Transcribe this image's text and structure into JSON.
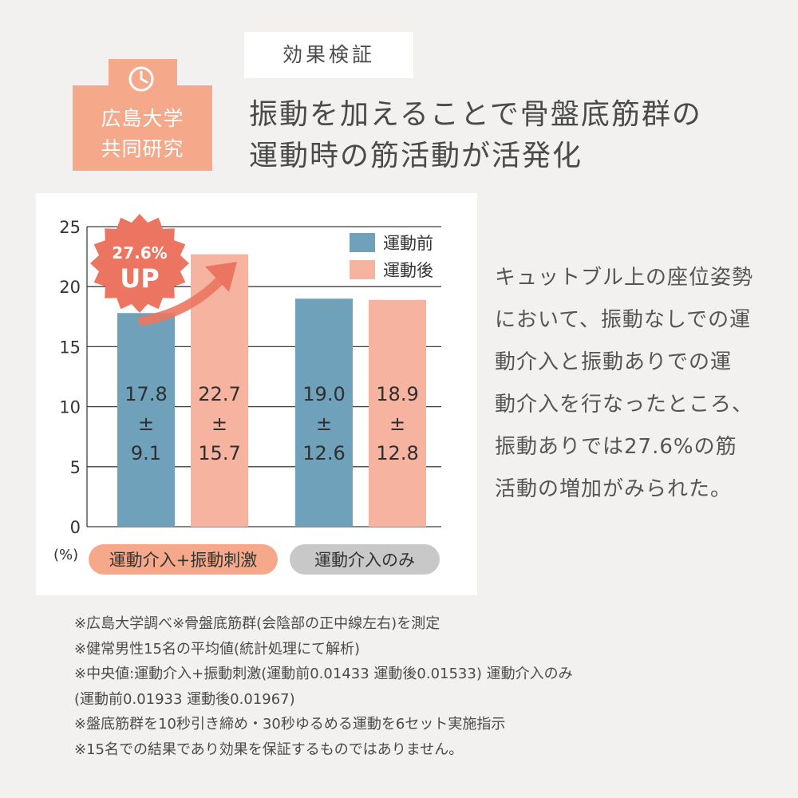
{
  "topic_label": "効果検証",
  "badge": {
    "line1": "広島大学",
    "line2": "共同研究"
  },
  "headline": {
    "line1": "振動を加えることで骨盤底筋群の",
    "line2": "運動時の筋活動が活発化"
  },
  "description": [
    "キュットブル上の座位姿勢",
    "において、振動なしでの運",
    "動介入と振動ありでの運",
    "動介入を行なったところ、",
    "振動ありでは27.6%の筋",
    "活動の増加がみられた。"
  ],
  "notes": [
    "※広島大学調べ※骨盤底筋群(会陰部の正中線左右)を測定",
    "※健常男性15名の平均値(統計処理にて解析)",
    "※中央値:運動介入+振動刺激(運動前0.01433 運動後0.01533) 運動介入のみ",
    "(運動前0.01933 運動後0.01967)",
    "※盤底筋群を10秒引き締め・30秒ゆるめる運動を6セット実施指示",
    "※15名での結果であり効果を保証するものではありません。"
  ],
  "chart_data": {
    "type": "bar",
    "ylabel": "(%)",
    "ylim": [
      0,
      25
    ],
    "yticks": [
      0,
      5,
      10,
      15,
      20,
      25
    ],
    "categories": [
      "運動介入+振動刺激",
      "運動介入のみ"
    ],
    "category_colors": [
      "#f6a98a",
      "#c8c8c8"
    ],
    "series": [
      {
        "name": "運動前",
        "color": "#6fa1ba",
        "values": [
          17.8,
          19.0
        ],
        "sd": [
          9.1,
          12.6
        ]
      },
      {
        "name": "運動後",
        "color": "#f6b4a0",
        "values": [
          22.7,
          18.9
        ],
        "sd": [
          15.7,
          12.8
        ]
      }
    ],
    "bar_labels": [
      [
        "17.8",
        "±",
        "9.1"
      ],
      [
        "22.7",
        "±",
        "15.7"
      ],
      [
        "19.0",
        "±",
        "12.6"
      ],
      [
        "18.9",
        "±",
        "12.8"
      ]
    ],
    "callout": {
      "line1": "27.6%",
      "line2": "UP",
      "color": "#ec7561"
    },
    "legend_position": "top-right",
    "grid": true
  }
}
